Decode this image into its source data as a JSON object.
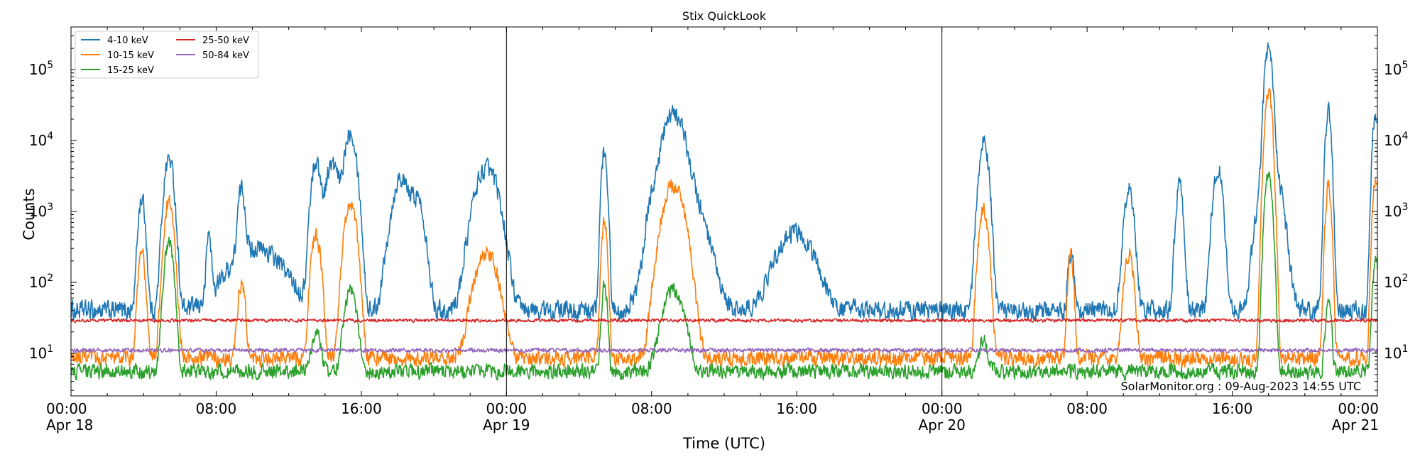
{
  "chart_data": {
    "type": "line",
    "title": "Stix QuickLook",
    "xlabel": "Time (UTC)",
    "ylabel": "Counts",
    "credit": "SolarMonitor.org : 09-Aug-2023 14:55 UTC",
    "x_unit": "hours since Apr 18 00:00 UTC",
    "xlim": [
      0,
      72
    ],
    "ylim": [
      2.5,
      400000
    ],
    "yscale": "log",
    "grid": false,
    "legend_position": "top-left",
    "x_ticks": [
      {
        "hour": 0,
        "time": "00:00",
        "date": "Apr 18"
      },
      {
        "hour": 8,
        "time": "08:00",
        "date": ""
      },
      {
        "hour": 16,
        "time": "16:00",
        "date": ""
      },
      {
        "hour": 24,
        "time": "00:00",
        "date": "Apr 19"
      },
      {
        "hour": 32,
        "time": "08:00",
        "date": ""
      },
      {
        "hour": 40,
        "time": "16:00",
        "date": ""
      },
      {
        "hour": 48,
        "time": "00:00",
        "date": "Apr 20"
      },
      {
        "hour": 56,
        "time": "08:00",
        "date": ""
      },
      {
        "hour": 64,
        "time": "16:00",
        "date": ""
      },
      {
        "hour": 72,
        "time": "00:00",
        "date": "Apr 21"
      }
    ],
    "y_ticks": [
      {
        "value": 10,
        "exp": "1"
      },
      {
        "value": 100,
        "exp": "2"
      },
      {
        "value": 1000,
        "exp": "3"
      },
      {
        "value": 10000,
        "exp": "4"
      },
      {
        "value": 100000,
        "exp": "5"
      }
    ],
    "day_boundaries": [
      24,
      48
    ],
    "series": [
      {
        "name": "4-10 keV",
        "color": "#1f77b4",
        "baseline": 40,
        "noise": 0.12,
        "peaks": [
          [
            3.9,
            1500,
            0.15
          ],
          [
            5.4,
            5600,
            0.2
          ],
          [
            7.6,
            480,
            0.1
          ],
          [
            9.4,
            1900,
            0.15
          ],
          [
            10.2,
            300,
            1.2
          ],
          [
            13.5,
            5000,
            0.2
          ],
          [
            14.4,
            4600,
            0.3
          ],
          [
            15.4,
            14000,
            0.25
          ],
          [
            18.1,
            700,
            0.15
          ],
          [
            18.2,
            2500,
            0.4
          ],
          [
            19.1,
            1400,
            0.3
          ],
          [
            22.9,
            4000,
            0.5
          ],
          [
            29.4,
            7000,
            0.12
          ],
          [
            32.0,
            900,
            0.2
          ],
          [
            33.2,
            21000,
            0.45
          ],
          [
            33.5,
            3000,
            0.8
          ],
          [
            39.9,
            500,
            0.8
          ],
          [
            50.3,
            9500,
            0.2
          ],
          [
            55.1,
            250,
            0.12
          ],
          [
            58.3,
            1900,
            0.2
          ],
          [
            61.1,
            2300,
            0.15
          ],
          [
            63.2,
            4000,
            0.2
          ],
          [
            66.0,
            210000,
            0.15
          ],
          [
            66.1,
            6000,
            0.4
          ],
          [
            69.3,
            25000,
            0.12
          ],
          [
            71.9,
            26000,
            0.12
          ]
        ]
      },
      {
        "name": "10-15 keV",
        "color": "#ff7f0e",
        "baseline": 8.5,
        "noise": 0.1,
        "peaks": [
          [
            3.9,
            250,
            0.15
          ],
          [
            5.4,
            1300,
            0.2
          ],
          [
            9.4,
            100,
            0.15
          ],
          [
            13.5,
            450,
            0.2
          ],
          [
            15.4,
            1300,
            0.25
          ],
          [
            22.9,
            250,
            0.5
          ],
          [
            29.4,
            700,
            0.12
          ],
          [
            33.2,
            2300,
            0.45
          ],
          [
            50.3,
            1000,
            0.2
          ],
          [
            55.1,
            250,
            0.12
          ],
          [
            58.3,
            250,
            0.2
          ],
          [
            66.0,
            45000,
            0.15
          ],
          [
            69.3,
            2300,
            0.12
          ],
          [
            71.9,
            3000,
            0.12
          ]
        ]
      },
      {
        "name": "15-25 keV",
        "color": "#2ca02c",
        "baseline": 5.5,
        "noise": 0.09,
        "peaks": [
          [
            5.4,
            350,
            0.2
          ],
          [
            13.5,
            20,
            0.2
          ],
          [
            15.4,
            80,
            0.25
          ],
          [
            29.4,
            90,
            0.12
          ],
          [
            33.2,
            80,
            0.45
          ],
          [
            50.3,
            15,
            0.2
          ],
          [
            66.0,
            3500,
            0.15
          ],
          [
            69.3,
            60,
            0.12
          ],
          [
            71.9,
            200,
            0.12
          ]
        ]
      },
      {
        "name": "25-50 keV",
        "color": "#d62728",
        "baseline": 29,
        "noise": 0.02,
        "peaks": []
      },
      {
        "name": "50-84 keV",
        "color": "#9467bd",
        "baseline": 11,
        "noise": 0.025,
        "peaks": []
      }
    ]
  }
}
